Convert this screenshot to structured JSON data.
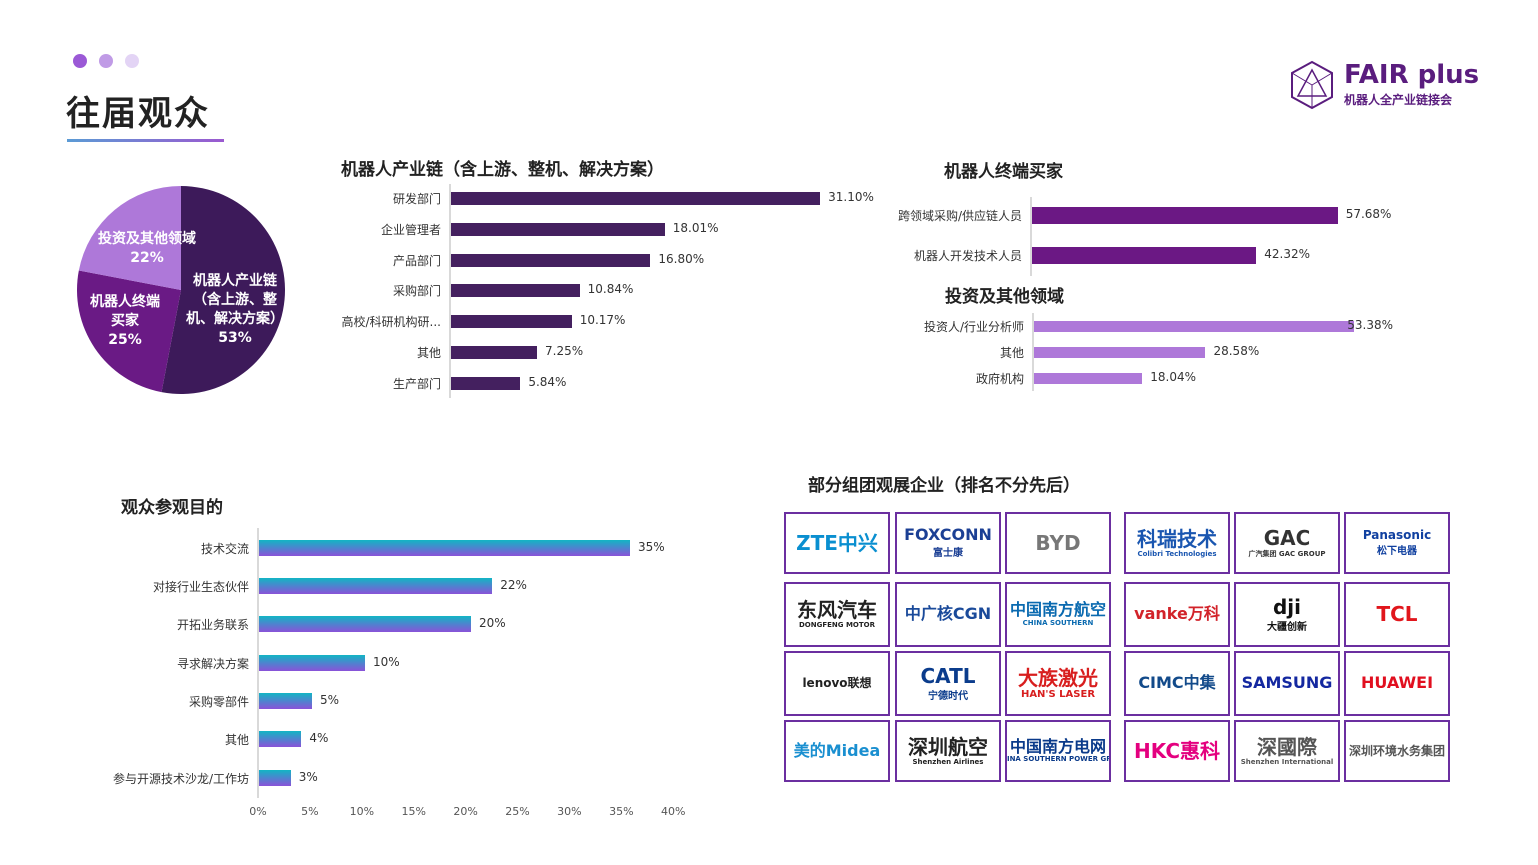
{
  "header": {
    "title": "往届观众",
    "brand": "FAIR plus",
    "brand_sub": "机器人全产业链接会",
    "dot_colors": [
      "#9b59d6",
      "#c09be6",
      "#e3d4f5"
    ]
  },
  "chart_data": [
    {
      "type": "pie",
      "name": "audience-share",
      "slices": [
        {
          "label": "机器人产业链（含上游、整机、解决方案）",
          "label_lines": [
            "机器人产业链",
            "（含上游、整",
            "机、解决方案）"
          ],
          "value": 53,
          "pct": "53%",
          "color": "#3d1a5a"
        },
        {
          "label": "机器人终端买家",
          "label_lines": [
            "机器人终端",
            "买家"
          ],
          "value": 25,
          "pct": "25%",
          "color": "#6a1a85"
        },
        {
          "label": "投资及其他领域",
          "label_lines": [
            "投资及其他领域"
          ],
          "value": 22,
          "pct": "22%",
          "color": "#ae78d9"
        }
      ]
    },
    {
      "type": "bar",
      "orientation": "horizontal",
      "title": "机器人产业链（含上游、整机、解决方案）",
      "color": "#44205f",
      "categories": [
        "研发部门",
        "企业管理者",
        "产品部门",
        "采购部门",
        "高校/科研机构研...",
        "其他",
        "生产部门"
      ],
      "values": [
        31.1,
        18.01,
        16.8,
        10.84,
        10.17,
        7.25,
        5.84
      ],
      "labels": [
        "31.10%",
        "18.01%",
        "16.80%",
        "10.84%",
        "10.17%",
        "7.25%",
        "5.84%"
      ]
    },
    {
      "type": "bar",
      "orientation": "horizontal",
      "title": "机器人终端买家",
      "color": "#6b1884",
      "categories": [
        "跨领域采购/供应链人员",
        "机器人开发技术人员"
      ],
      "values": [
        57.68,
        42.32
      ],
      "labels": [
        "57.68%",
        "42.32%"
      ]
    },
    {
      "type": "bar",
      "orientation": "horizontal",
      "title": "投资及其他领域",
      "color": "#ae78d9",
      "categories": [
        "投资人/行业分析师",
        "其他",
        "政府机构"
      ],
      "values": [
        53.38,
        28.58,
        18.04
      ],
      "labels": [
        "53.38%",
        "28.58%",
        "18.04%"
      ]
    },
    {
      "type": "bar",
      "orientation": "horizontal",
      "title": "观众参观目的",
      "gradient": [
        "#12b5c4",
        "#8a52d8"
      ],
      "categories": [
        "技术交流",
        "对接行业生态伙伴",
        "开拓业务联系",
        "寻求解决方案",
        "采购零部件",
        "其他",
        "参与开源技术沙龙/工作坊"
      ],
      "values": [
        35,
        22,
        20,
        10,
        5,
        4,
        3
      ],
      "labels": [
        "35%",
        "22%",
        "20%",
        "10%",
        "5%",
        "4%",
        "3%"
      ],
      "xlim": [
        0,
        40
      ],
      "xticks": [
        "0%",
        "5%",
        "10%",
        "15%",
        "20%",
        "25%",
        "30%",
        "35%",
        "40%"
      ]
    }
  ],
  "companies": {
    "title": "部分组团观展企业（排名不分先后）",
    "logos": [
      {
        "m": "ZTE中兴",
        "s": "",
        "c": "#0a8fd0"
      },
      {
        "m": "FOXCONN",
        "s": "富士康",
        "c": "#1b3f94"
      },
      {
        "m": "BYD",
        "s": "",
        "c": "#777"
      },
      {
        "m": "科瑞技术",
        "s": "Colibri Technologies",
        "c": "#1a56b0"
      },
      {
        "m": "GAC",
        "s": "广汽集团 GAC GROUP",
        "c": "#333"
      },
      {
        "m": "Panasonic",
        "s": "松下电器",
        "c": "#1040a0"
      },
      {
        "m": "东风汽车",
        "s": "DONGFENG MOTOR",
        "c": "#222"
      },
      {
        "m": "中广核CGN",
        "s": "",
        "c": "#1a4a9a"
      },
      {
        "m": "中国南方航空",
        "s": "CHINA SOUTHERN",
        "c": "#0a6ab0"
      },
      {
        "m": "vanke万科",
        "s": "",
        "c": "#d2232a"
      },
      {
        "m": "dji",
        "s": "大疆创新",
        "c": "#111"
      },
      {
        "m": "TCL",
        "s": "",
        "c": "#e1161c"
      },
      {
        "m": "lenovo联想",
        "s": "",
        "c": "#222"
      },
      {
        "m": "CATL",
        "s": "宁德时代",
        "c": "#0b3c8c"
      },
      {
        "m": "大族激光",
        "s": "HAN'S LASER",
        "c": "#d81e1e"
      },
      {
        "m": "CIMC中集",
        "s": "",
        "c": "#124a8a"
      },
      {
        "m": "SAMSUNG",
        "s": "",
        "c": "#1428a0"
      },
      {
        "m": "HUAWEI",
        "s": "",
        "c": "#e10f1f"
      },
      {
        "m": "美的Midea",
        "s": "",
        "c": "#1a8fd0"
      },
      {
        "m": "深圳航空",
        "s": "Shenzhen Airlines",
        "c": "#222"
      },
      {
        "m": "中国南方电网",
        "s": "CHINA SOUTHERN POWER GRID",
        "c": "#0a3a8a"
      },
      {
        "m": "HKC惠科",
        "s": "",
        "c": "#e4007f"
      },
      {
        "m": "深國際",
        "s": "Shenzhen International",
        "c": "#555"
      },
      {
        "m": "深圳环境水务集团",
        "s": "",
        "c": "#555"
      }
    ]
  }
}
